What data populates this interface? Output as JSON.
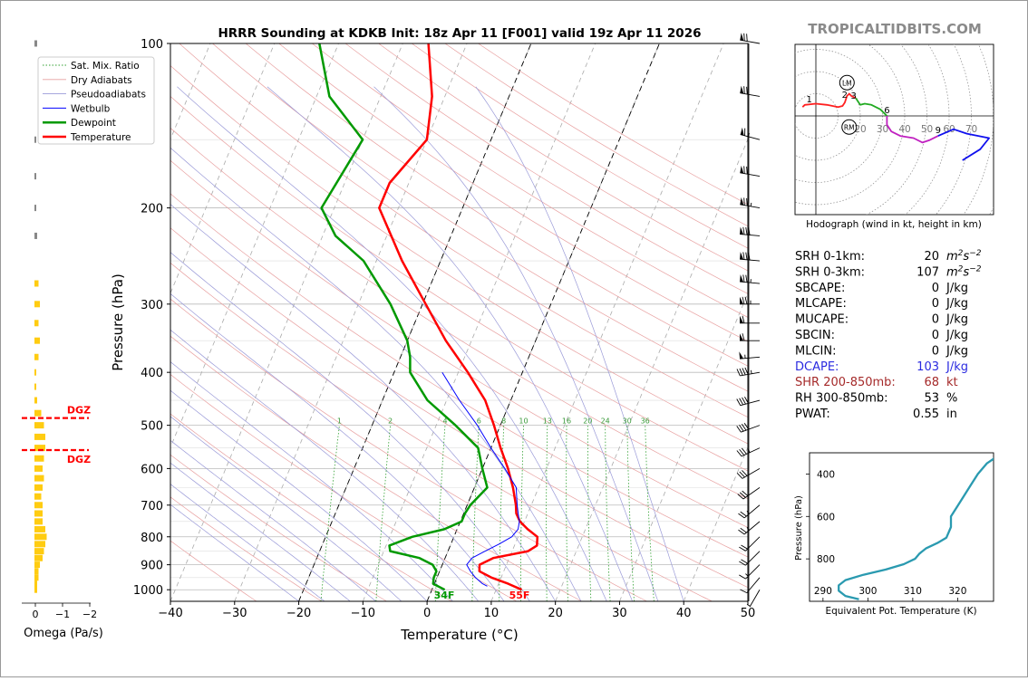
{
  "page": {
    "brand": "TROPICALTIDBITS.COM"
  },
  "chart_data": [
    {
      "type": "line",
      "name": "skewt",
      "title": "HRRR Sounding at KDKB Init: 18z Apr 11 [F001] valid 19z Apr 11 2026",
      "xlabel": "Temperature (°C)",
      "ylabel": "Pressure (hPa)",
      "xlim": [
        -40,
        50
      ],
      "ylim": [
        1050,
        100
      ],
      "x_ticks": [
        -40,
        -30,
        -20,
        -10,
        0,
        10,
        20,
        30,
        40,
        50
      ],
      "x_tick_labels": [
        "−40",
        "−30",
        "−20",
        "−10",
        "0",
        "10",
        "20",
        "30",
        "40",
        "50"
      ],
      "y_ticks": [
        100,
        200,
        300,
        400,
        500,
        600,
        700,
        800,
        900,
        1000
      ],
      "y_tick_labels": [
        "100",
        "200",
        "300",
        "400",
        "500",
        "600",
        "700",
        "800",
        "900",
        "1000"
      ],
      "grid": true,
      "legend": "top-left",
      "legend_entries": [
        "Sat. Mix. Ratio",
        "Dry Adiabats",
        "Pseudoadiabats",
        "Wetbulb",
        "Dewpoint",
        "Temperature"
      ],
      "mixing_ratio_labels": [
        "1",
        "2",
        "4",
        "6",
        "8",
        "10",
        "13",
        "16",
        "20",
        "24",
        "30",
        "36"
      ],
      "surface_labels": {
        "dewpoint": "34F",
        "temperature": "55F"
      },
      "colors": {
        "temperature": "#ff0000",
        "dewpoint": "#009900",
        "wetbulb": "#0000ff",
        "dry": "#e8a0a0",
        "moist": "#9a9ad8",
        "mix": "#30a030"
      },
      "series": [
        {
          "name": "Temperature",
          "p": [
            1000,
            975,
            950,
            925,
            900,
            875,
            850,
            830,
            800,
            775,
            750,
            725,
            700,
            650,
            600,
            550,
            500,
            450,
            400,
            350,
            300,
            250,
            200,
            180,
            150,
            125,
            100
          ],
          "t": [
            14,
            11.5,
            8.5,
            6.2,
            5.8,
            7.5,
            12.5,
            13.5,
            13,
            11,
            9.3,
            8.2,
            7.6,
            6,
            4,
            1.5,
            -1,
            -4,
            -8.5,
            -14,
            -19.5,
            -26,
            -33,
            -33,
            -30,
            -32,
            -36
          ]
        },
        {
          "name": "Dewpoint",
          "p": [
            1000,
            975,
            950,
            925,
            900,
            875,
            850,
            830,
            800,
            775,
            750,
            725,
            700,
            650,
            600,
            550,
            500,
            450,
            400,
            375,
            350,
            300,
            250,
            225,
            200,
            150,
            125,
            100
          ],
          "t": [
            2,
            -0.2,
            -0.5,
            -0.5,
            -1.5,
            -4,
            -9,
            -9.5,
            -6.5,
            -2,
            0.2,
            0.2,
            0.5,
            2,
            0,
            -2,
            -7,
            -13,
            -17.5,
            -18.5,
            -20,
            -25,
            -32,
            -38,
            -42,
            -40,
            -48,
            -53
          ]
        },
        {
          "name": "Wetbulb",
          "p": [
            985,
            975,
            950,
            925,
            900,
            875,
            850,
            825,
            800,
            775,
            750,
            725,
            700,
            650,
            600,
            550,
            500,
            450,
            400
          ],
          "t": [
            8.4,
            7.5,
            6,
            4.8,
            3.8,
            4.2,
            5.8,
            7.5,
            9,
            9.5,
            9.2,
            8.5,
            7.8,
            6.5,
            3.5,
            0,
            -3.6,
            -8,
            -12.5
          ]
        }
      ]
    },
    {
      "type": "scatter",
      "name": "hodograph",
      "title": "Hodograph (wind in kt, height in km)",
      "ring_labels": [
        "20",
        "30",
        "40",
        "50",
        "60",
        "70"
      ],
      "markers": [
        "LM",
        "RM"
      ],
      "height_labels": [
        "1",
        "2",
        "3",
        "6",
        "9"
      ],
      "colors": {
        "0-3km": "#ff2020",
        "3-6km": "#22aa22",
        "6-9km": "#c020c0",
        "9km+": "#1010ee"
      },
      "segments": [
        {
          "name": "0-3km",
          "u": [
            -6,
            -5,
            0,
            5,
            10,
            12,
            13,
            14,
            15,
            16,
            18
          ],
          "v": [
            4,
            5,
            5.5,
            5,
            4,
            4.5,
            6,
            9,
            10,
            9,
            8
          ]
        },
        {
          "name": "3-6km",
          "u": [
            18,
            19,
            20,
            22,
            25,
            29,
            32
          ],
          "v": [
            8,
            6.5,
            5,
            5.5,
            5,
            3,
            0
          ]
        },
        {
          "name": "6-9km",
          "u": [
            32,
            32,
            34,
            38,
            44,
            48,
            51,
            55
          ],
          "v": [
            0,
            -4,
            -7,
            -9,
            -10,
            -12,
            -11,
            -9
          ]
        },
        {
          "name": "9km+",
          "u": [
            55,
            62,
            68,
            78,
            74,
            66
          ],
          "v": [
            -9,
            -6,
            -8,
            -10,
            -15,
            -20
          ]
        }
      ],
      "storm_motion": {
        "LM": [
          14,
          15
        ],
        "RM": [
          15,
          -5
        ]
      },
      "height_points": {
        "1": [
          -3,
          5
        ],
        "2": [
          13,
          7
        ],
        "3": [
          17,
          6.5
        ],
        "6": [
          32,
          0
        ],
        "9": [
          55,
          -9
        ]
      }
    },
    {
      "type": "line",
      "name": "theta_e",
      "xlabel": "Equivalent Pot. Temperature (K)",
      "ylabel": "Pressure (hPa)",
      "xlim": [
        287,
        328
      ],
      "ylim": [
        1000,
        300
      ],
      "x_ticks": [
        290,
        300,
        310,
        320
      ],
      "y_ticks": [
        400,
        600,
        800
      ],
      "series": [
        {
          "name": "Equivalent Pot. Temperature",
          "p": [
            990,
            975,
            950,
            925,
            900,
            875,
            850,
            825,
            800,
            775,
            750,
            725,
            700,
            650,
            600,
            550,
            500,
            450,
            400,
            350,
            300
          ],
          "v": [
            298,
            295,
            293.5,
            293.5,
            295,
            299,
            304,
            308,
            310.5,
            311.5,
            313,
            315.5,
            317.5,
            318.5,
            318.5,
            320,
            321.5,
            323,
            324.5,
            326.5,
            330
          ]
        }
      ]
    },
    {
      "type": "bar",
      "name": "omega",
      "xlabel": "Omega (Pa/s)",
      "x_ticks": [
        0,
        -1,
        -2
      ],
      "x_tick_labels": [
        "0",
        "−1",
        "−2"
      ],
      "dgz_label": "DGZ",
      "dgz_bounds": [
        485,
        555
      ],
      "p": [
        100,
        150,
        175,
        200,
        225,
        275,
        300,
        325,
        350,
        375,
        400,
        425,
        450,
        475,
        500,
        525,
        550,
        575,
        600,
        625,
        650,
        675,
        700,
        725,
        750,
        775,
        800,
        825,
        850,
        875,
        900,
        925,
        950,
        975,
        1000
      ],
      "values": [
        0.1,
        0.05,
        0.05,
        0.05,
        0.1,
        0.15,
        0.2,
        0.15,
        0.2,
        0.15,
        0.05,
        0.05,
        0.1,
        0.25,
        0.35,
        0.4,
        0.4,
        0.35,
        0.3,
        0.35,
        0.3,
        0.25,
        0.3,
        0.3,
        0.3,
        0.4,
        0.45,
        0.4,
        0.35,
        0.3,
        0.2,
        0.15,
        0.15,
        0.1,
        0.1
      ],
      "color_negative": "#ffcc11",
      "color_positive": "#888888"
    },
    {
      "type": "table",
      "name": "indices",
      "rows": [
        {
          "label": "SRH 0-1km:",
          "value": "20",
          "unit": "m2s-2",
          "color": "#000000"
        },
        {
          "label": "SRH 0-3km:",
          "value": "107",
          "unit": "m2s-2",
          "color": "#000000"
        },
        {
          "label": "SBCAPE:",
          "value": "0",
          "unit": "J/kg",
          "color": "#000000"
        },
        {
          "label": "MLCAPE:",
          "value": "0",
          "unit": "J/kg",
          "color": "#000000"
        },
        {
          "label": "MUCAPE:",
          "value": "0",
          "unit": "J/kg",
          "color": "#000000"
        },
        {
          "label": "SBCIN:",
          "value": "0",
          "unit": "J/kg",
          "color": "#000000"
        },
        {
          "label": "MLCIN:",
          "value": "0",
          "unit": "J/kg",
          "color": "#000000"
        },
        {
          "label": "DCAPE:",
          "value": "103",
          "unit": "J/kg",
          "color": "#2a2ae0"
        },
        {
          "label": "SHR 200-850mb:",
          "value": "68",
          "unit": "kt",
          "color": "#a52a2a"
        },
        {
          "label": "RH 300-850mb:",
          "value": "53",
          "unit": "%",
          "color": "#000000"
        },
        {
          "label": "PWAT:",
          "value": "0.55",
          "unit": "in",
          "color": "#000000"
        }
      ]
    },
    {
      "type": "scatter",
      "name": "wind_barbs",
      "p": [
        100,
        125,
        150,
        175,
        200,
        225,
        250,
        275,
        300,
        325,
        350,
        375,
        400,
        450,
        500,
        550,
        600,
        650,
        700,
        750,
        800,
        850,
        900,
        950,
        1000
      ],
      "speed_kt": [
        70,
        70,
        65,
        70,
        75,
        80,
        80,
        75,
        75,
        65,
        60,
        55,
        45,
        40,
        40,
        35,
        30,
        30,
        25,
        25,
        20,
        20,
        15,
        10,
        5
      ],
      "direction_deg": [
        280,
        280,
        285,
        280,
        280,
        275,
        275,
        275,
        270,
        270,
        270,
        265,
        260,
        255,
        250,
        245,
        240,
        235,
        230,
        230,
        225,
        225,
        225,
        220,
        210
      ]
    }
  ]
}
